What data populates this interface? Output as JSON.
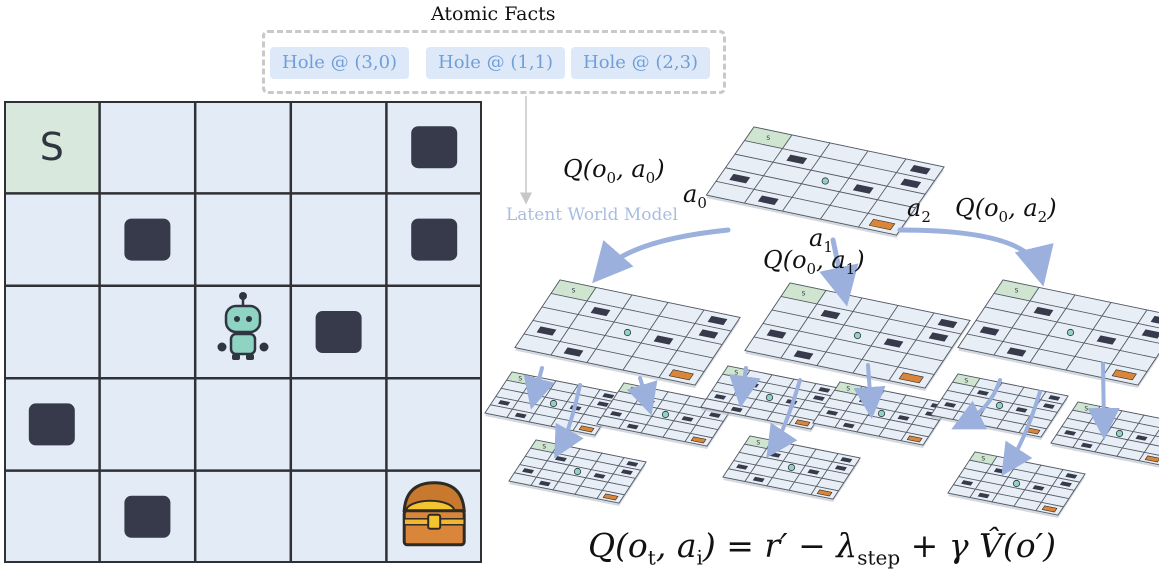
{
  "atomic_facts": {
    "title": "Atomic Facts",
    "facts": [
      "Hole @ (3,0)",
      "Hole @ (1,1)",
      "Hole @ (2,3)"
    ]
  },
  "latent_world_model_label": "Latent World Model",
  "grid": {
    "rows": 5,
    "cols": 5,
    "start_label": "S",
    "start": [
      0,
      0
    ],
    "holes": [
      [
        0,
        4
      ],
      [
        1,
        1
      ],
      [
        1,
        4
      ],
      [
        2,
        3
      ],
      [
        3,
        0
      ],
      [
        4,
        1
      ]
    ],
    "agent": [
      2,
      2
    ],
    "goal": [
      4,
      4
    ],
    "colors": {
      "cell": "#e3ecf6",
      "start_cell": "#d8e8dc",
      "grid_line": "#2f3136",
      "hole": "#363a4a"
    },
    "icons": {
      "agent": "robot-icon",
      "goal": "treasure-chest-icon",
      "hole": "hole-block-icon"
    }
  },
  "tree": {
    "q_labels": {
      "q0": {
        "fn": "Q",
        "args": "o",
        "sub_o": "0",
        "a": "a",
        "sub_a": "0"
      },
      "q1": {
        "fn": "Q",
        "args": "o",
        "sub_o": "0",
        "a": "a",
        "sub_a": "1"
      },
      "q2": {
        "fn": "Q",
        "args": "o",
        "sub_o": "0",
        "a": "a",
        "sub_a": "2"
      }
    },
    "action_labels": [
      {
        "base": "a",
        "sub": "0"
      },
      {
        "base": "a",
        "sub": "1"
      },
      {
        "base": "a",
        "sub": "2"
      }
    ],
    "arrow_color": "#9bb0dd"
  },
  "equation": {
    "lhs": "Q(o",
    "lhs_sub_t": "t",
    "lhs_mid": ", a",
    "lhs_sub_i": "i",
    "rhs_1": ") = r′ − λ",
    "rhs_sub": "step",
    "rhs_2": " + γ V̂(o′)"
  }
}
